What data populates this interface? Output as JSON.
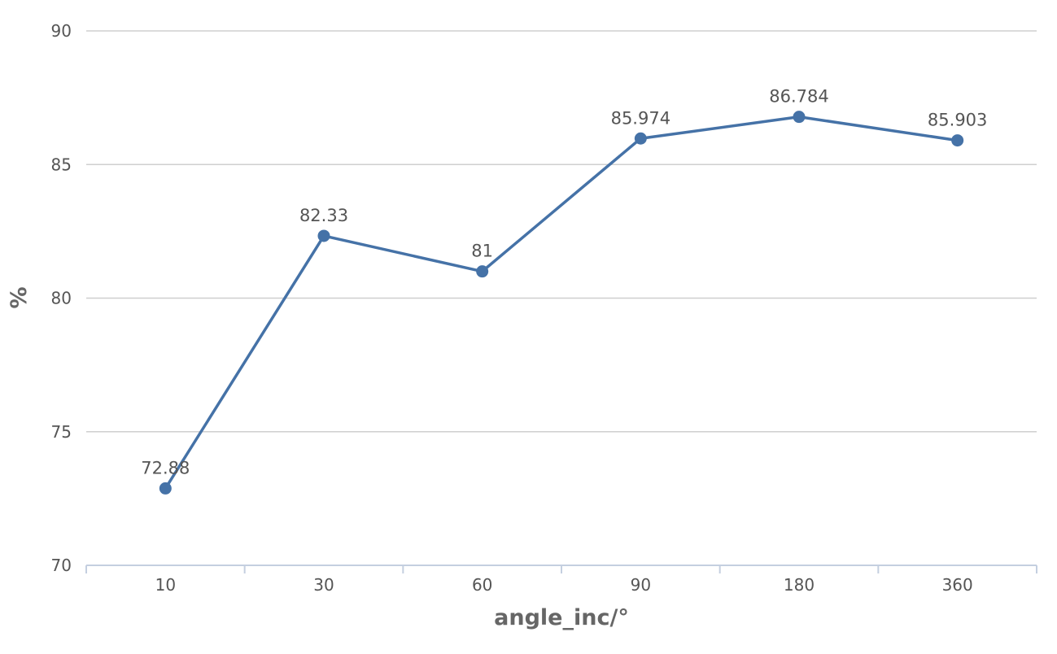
{
  "chart_data": {
    "type": "line",
    "categories": [
      "10",
      "30",
      "60",
      "90",
      "180",
      "360"
    ],
    "series": [
      {
        "values": [
          72.88,
          82.33,
          81,
          85.974,
          86.784,
          85.903
        ],
        "labels": [
          "72.88",
          "82.33",
          "81",
          "85.974",
          "86.784",
          "85.903"
        ],
        "color": "#4572a7"
      }
    ],
    "xlabel": "angle_inc/°",
    "ylabel": "%",
    "ylim": [
      70,
      90
    ],
    "yticks": [
      "70",
      "75",
      "80",
      "85",
      "90"
    ],
    "grid": true,
    "legend": "none"
  }
}
